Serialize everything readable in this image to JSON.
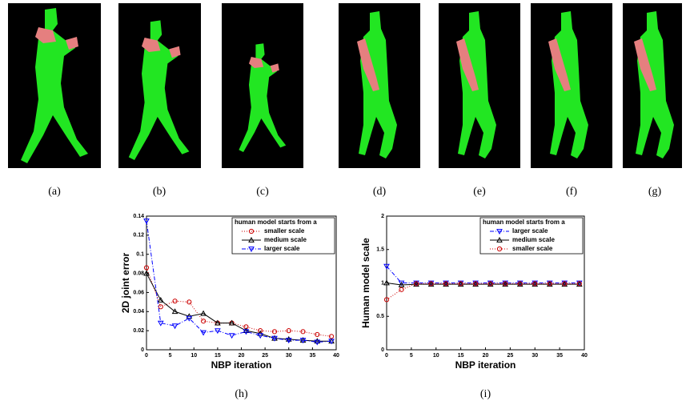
{
  "panels": [
    "(a)",
    "(b)",
    "(c)",
    "(d)",
    "(e)",
    "(f)",
    "(g)"
  ],
  "chart_data": [
    {
      "type": "line",
      "caption": "(h)",
      "xlabel": "NBP iteration",
      "ylabel": "2D joint error",
      "legend_title": "human model starts from a",
      "legend": "upper right",
      "grid": false,
      "x": [
        0,
        3,
        6,
        9,
        12,
        15,
        18,
        21,
        24,
        27,
        30,
        33,
        36,
        39
      ],
      "xlim": [
        0,
        40
      ],
      "xticks": [
        0,
        5,
        10,
        15,
        20,
        25,
        30,
        35,
        40
      ],
      "ylim": [
        0,
        0.14
      ],
      "yticks": [
        0,
        0.02,
        0.04,
        0.06,
        0.08,
        0.1,
        0.12,
        0.14
      ],
      "series": [
        {
          "name": "smaller scale",
          "color": "#cc0000",
          "marker": "circle",
          "linestyle": "dotted",
          "values": [
            0.086,
            0.045,
            0.051,
            0.05,
            0.03,
            0.028,
            0.028,
            0.024,
            0.02,
            0.019,
            0.02,
            0.019,
            0.016,
            0.014
          ]
        },
        {
          "name": "medium scale",
          "color": "#000000",
          "marker": "triangle-up",
          "linestyle": "solid",
          "values": [
            0.08,
            0.052,
            0.04,
            0.035,
            0.038,
            0.028,
            0.028,
            0.02,
            0.017,
            0.012,
            0.011,
            0.01,
            0.009,
            0.009
          ]
        },
        {
          "name": "larger scale",
          "color": "#0000ff",
          "marker": "triangle-down",
          "linestyle": "dashdot",
          "values": [
            0.135,
            0.028,
            0.025,
            0.033,
            0.018,
            0.02,
            0.015,
            0.019,
            0.015,
            0.012,
            0.01,
            0.01,
            0.008,
            0.009
          ]
        }
      ]
    },
    {
      "type": "line",
      "caption": "(i)",
      "xlabel": "NBP iteration",
      "ylabel": "Human model scale",
      "legend_title": "human model starts from a",
      "legend": "upper right",
      "grid": false,
      "x": [
        0,
        3,
        6,
        9,
        12,
        15,
        18,
        21,
        24,
        27,
        30,
        33,
        36,
        39
      ],
      "xlim": [
        0,
        40
      ],
      "xticks": [
        0,
        5,
        10,
        15,
        20,
        25,
        30,
        35,
        40
      ],
      "ylim": [
        0,
        2
      ],
      "yticks": [
        0,
        0.5,
        1,
        1.5,
        2
      ],
      "series": [
        {
          "name": "larger scale",
          "color": "#0000ff",
          "marker": "triangle-down",
          "linestyle": "dashdot",
          "values": [
            1.25,
            1.0,
            1.0,
            1.0,
            1.0,
            1.0,
            1.0,
            1.0,
            1.0,
            1.0,
            1.0,
            1.0,
            1.0,
            1.0
          ]
        },
        {
          "name": "medium scale",
          "color": "#000000",
          "marker": "triangle-up",
          "linestyle": "solid",
          "values": [
            1.0,
            0.97,
            0.98,
            0.98,
            0.98,
            0.98,
            0.98,
            0.98,
            0.98,
            0.98,
            0.98,
            0.98,
            0.98,
            0.98
          ]
        },
        {
          "name": "smaller scale",
          "color": "#cc0000",
          "marker": "circle",
          "linestyle": "dotted",
          "values": [
            0.75,
            0.9,
            0.99,
            0.99,
            0.99,
            0.99,
            0.99,
            0.99,
            0.99,
            0.99,
            0.99,
            0.99,
            0.99,
            0.99
          ]
        }
      ]
    }
  ]
}
